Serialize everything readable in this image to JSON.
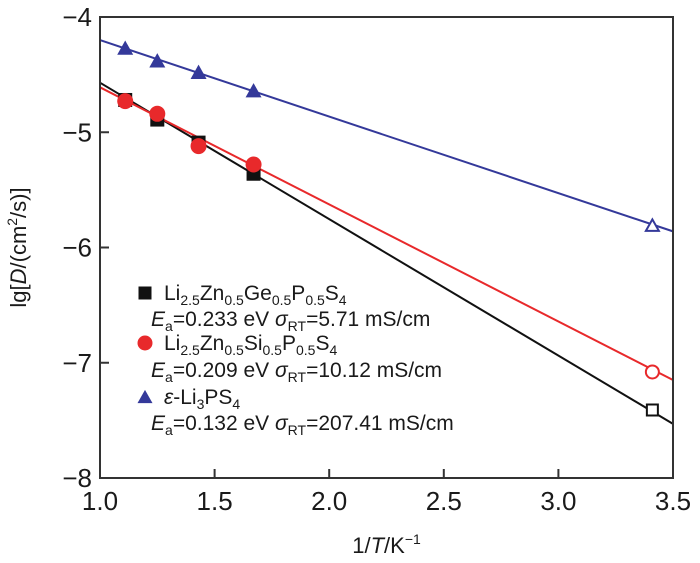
{
  "chart_data": {
    "type": "scatter",
    "title": "",
    "xlabel": {
      "prefix": "1/",
      "italic": "T",
      "unit": "/K",
      "sup": "−1"
    },
    "ylabel": {
      "prefix": "lg[",
      "italic": "D",
      "mid": "/(cm",
      "sup": "2",
      "suffix": "/s)]"
    },
    "xlim": [
      1.0,
      3.5
    ],
    "ylim": [
      -8,
      -4
    ],
    "xticks": [
      1.0,
      1.5,
      2.0,
      2.5,
      3.0,
      3.5
    ],
    "xtick_labels": [
      "1.0",
      "1.5",
      "2.0",
      "2.5",
      "3.0",
      "3.5"
    ],
    "yticks": [
      -4,
      -5,
      -6,
      -7,
      -8
    ],
    "ytick_labels": [
      "−4",
      "−5",
      "−6",
      "−7",
      "−8"
    ],
    "grid": false,
    "legend_position": "lower-left",
    "series": [
      {
        "name": "Li2.5Zn0.5Ge0.5P0.5S4",
        "color": "#111111",
        "marker": "square",
        "points": [
          {
            "x": 1.11,
            "y": -4.72
          },
          {
            "x": 1.25,
            "y": -4.89
          },
          {
            "x": 1.43,
            "y": -5.09
          },
          {
            "x": 1.67,
            "y": -5.36
          }
        ],
        "extrapolated_point": {
          "x": 3.41,
          "y": -7.41
        },
        "fit_line": [
          [
            1.0,
            -4.57
          ],
          [
            3.5,
            -7.53
          ]
        ],
        "legend_formula": [
          [
            "Li",
            ""
          ],
          [
            "2.5",
            "sub"
          ],
          [
            "Zn",
            ""
          ],
          [
            "0.5",
            "sub"
          ],
          [
            "Ge",
            ""
          ],
          [
            "0.5",
            "sub"
          ],
          [
            "P",
            ""
          ],
          [
            "0.5",
            "sub"
          ],
          [
            "S",
            ""
          ],
          [
            "4",
            "sub"
          ]
        ],
        "Ea": "0.233 eV",
        "sigma_RT": "5.71 mS/cm"
      },
      {
        "name": "Li2.5Zn0.5Si0.5P0.5S4",
        "color": "#e8292b",
        "marker": "circle",
        "points": [
          {
            "x": 1.11,
            "y": -4.73
          },
          {
            "x": 1.25,
            "y": -4.84
          },
          {
            "x": 1.43,
            "y": -5.12
          },
          {
            "x": 1.67,
            "y": -5.28
          }
        ],
        "extrapolated_point": {
          "x": 3.41,
          "y": -7.08
        },
        "fit_line": [
          [
            1.0,
            -4.61
          ],
          [
            3.5,
            -7.15
          ]
        ],
        "legend_formula": [
          [
            "Li",
            ""
          ],
          [
            "2.5",
            "sub"
          ],
          [
            "Zn",
            ""
          ],
          [
            "0.5",
            "sub"
          ],
          [
            "Si",
            ""
          ],
          [
            "0.5",
            "sub"
          ],
          [
            "P",
            ""
          ],
          [
            "0.5",
            "sub"
          ],
          [
            "S",
            ""
          ],
          [
            "4",
            "sub"
          ]
        ],
        "Ea": "0.209 eV",
        "sigma_RT": "10.12 mS/cm"
      },
      {
        "name": "ε-Li3PS4",
        "color": "#34399a",
        "marker": "triangle",
        "points": [
          {
            "x": 1.11,
            "y": -4.27
          },
          {
            "x": 1.25,
            "y": -4.38
          },
          {
            "x": 1.43,
            "y": -4.48
          },
          {
            "x": 1.67,
            "y": -4.64
          }
        ],
        "extrapolated_point": {
          "x": 3.41,
          "y": -5.81
        },
        "fit_line": [
          [
            1.0,
            -4.2
          ],
          [
            3.5,
            -5.86
          ]
        ],
        "legend_formula": [
          [
            "ε",
            "italic"
          ],
          [
            "-Li",
            ""
          ],
          [
            "3",
            "sub"
          ],
          [
            "PS",
            ""
          ],
          [
            "4",
            "sub"
          ]
        ],
        "Ea": "0.132 eV",
        "sigma_RT": "207.41 mS/cm"
      }
    ],
    "legend_labels": {
      "ea_symbol": "E",
      "ea_sub": "a",
      "sigma_symbol": "σ",
      "sigma_sub": "RT"
    }
  }
}
